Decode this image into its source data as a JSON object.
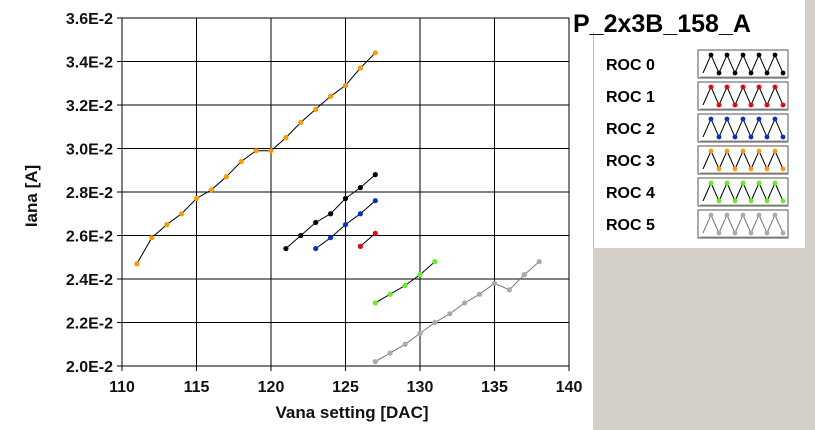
{
  "chart_data": {
    "type": "line",
    "title": "P_2x3B_158_A",
    "xlabel": "Vana setting [DAC]",
    "ylabel": "Iana [A]",
    "xlim": [
      110,
      140
    ],
    "ylim": [
      0.02,
      0.036
    ],
    "x_ticks": [
      110,
      115,
      120,
      125,
      130,
      135,
      140
    ],
    "x_tick_labels": [
      "110",
      "115",
      "120",
      "125",
      "130",
      "135",
      "140"
    ],
    "y_ticks": [
      0.02,
      0.022,
      0.024,
      0.026,
      0.028,
      0.03,
      0.032,
      0.034,
      0.036
    ],
    "y_tick_labels": [
      "2.0E-2",
      "2.2E-2",
      "2.4E-2",
      "2.6E-2",
      "2.8E-2",
      "3.0E-2",
      "3.2E-2",
      "3.4E-2",
      "3.6E-2"
    ],
    "grid": true,
    "legend_position": "right",
    "series": [
      {
        "name": "ROC 0",
        "marker_color": "#000000",
        "line_color": "#000000",
        "x": [
          121,
          122,
          123,
          124,
          125,
          126,
          127
        ],
        "y": [
          0.0254,
          0.026,
          0.0266,
          0.027,
          0.0277,
          0.0282,
          0.0288
        ]
      },
      {
        "name": "ROC 1",
        "marker_color": "#ee0000",
        "line_color": "#000000",
        "x": [
          126,
          127
        ],
        "y": [
          0.0255,
          0.0261
        ]
      },
      {
        "name": "ROC 2",
        "marker_color": "#0033cc",
        "line_color": "#000000",
        "x": [
          123,
          124,
          125,
          126,
          127
        ],
        "y": [
          0.0254,
          0.0259,
          0.0265,
          0.027,
          0.0276
        ]
      },
      {
        "name": "ROC 3",
        "marker_color": "#ff9900",
        "line_color": "#000000",
        "x": [
          111,
          112,
          113,
          114,
          115,
          116,
          117,
          118,
          119,
          120,
          121,
          122,
          123,
          124,
          125,
          126,
          127
        ],
        "y": [
          0.0247,
          0.0259,
          0.0265,
          0.027,
          0.0277,
          0.0281,
          0.0287,
          0.0294,
          0.0299,
          0.0299,
          0.0305,
          0.0312,
          0.0318,
          0.0324,
          0.0329,
          0.0337,
          0.0344
        ]
      },
      {
        "name": "ROC 4",
        "marker_color": "#66ee22",
        "line_color": "#000000",
        "x": [
          127,
          128,
          129,
          130,
          131
        ],
        "y": [
          0.0229,
          0.0233,
          0.0237,
          0.0242,
          0.0248
        ]
      },
      {
        "name": "ROC 5",
        "marker_color": "#aaaaaa",
        "line_color": "#777777",
        "x": [
          127,
          128,
          129,
          130,
          131,
          132,
          133,
          134,
          135,
          136,
          137,
          138
        ],
        "y": [
          0.0202,
          0.0206,
          0.021,
          0.0215,
          0.022,
          0.0224,
          0.0229,
          0.0233,
          0.0238,
          0.0235,
          0.0242,
          0.0248
        ]
      }
    ]
  }
}
